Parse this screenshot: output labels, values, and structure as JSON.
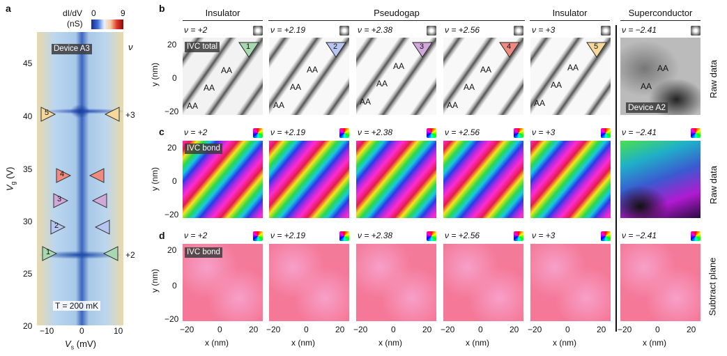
{
  "panel_labels": {
    "a": "a",
    "b": "b",
    "c": "c",
    "d": "d"
  },
  "panel_a": {
    "colorbar_label": "dI/dV",
    "colorbar_unit": "(nS)",
    "colorbar_min": "0",
    "colorbar_max": "9",
    "device": "Device A3",
    "nu_label": "ν",
    "temperature": "T = 200 mK",
    "xlabel": "V",
    "xlabel_sub": "s",
    "xlabel_unit": "(mV)",
    "ylabel": "V",
    "ylabel_sub": "g",
    "ylabel_unit": "(V)",
    "yticks": [
      "45",
      "40",
      "35",
      "30",
      "25",
      "20"
    ],
    "xticks": [
      "−10",
      "0",
      "10"
    ],
    "nu_marks": [
      "+3",
      "+2"
    ],
    "markers": [
      "5",
      "4",
      "3",
      "2",
      "1"
    ]
  },
  "column_headers": [
    "Insulator",
    "Pseudogap",
    "Insulator",
    "Superconductor"
  ],
  "fillings": [
    "ν = +2",
    "ν = +2.19",
    "ν = +2.38",
    "ν = +2.56",
    "ν = +3",
    "ν = −2.41"
  ],
  "row_b": {
    "tag": "IVC total",
    "device_tag": "Device A2",
    "aa": "AA",
    "side": "Raw data",
    "badges": [
      "1",
      "2",
      "3",
      "4",
      "5"
    ]
  },
  "row_c": {
    "tag": "IVC bond",
    "side": "Raw data"
  },
  "row_d": {
    "tag": "IVC bond",
    "side": "Subtract plane"
  },
  "axes": {
    "ylabel": "y (nm)",
    "xlabel": "x (nm)",
    "ticks": [
      "20",
      "0",
      "−20"
    ],
    "xticks": [
      "−20",
      "0",
      "20"
    ]
  },
  "colors": {
    "marker1": "#a8d8b0",
    "marker2": "#b7c6f0",
    "marker3": "#d2a8dc",
    "marker4": "#f08a80",
    "marker5": "#f6d99a"
  }
}
